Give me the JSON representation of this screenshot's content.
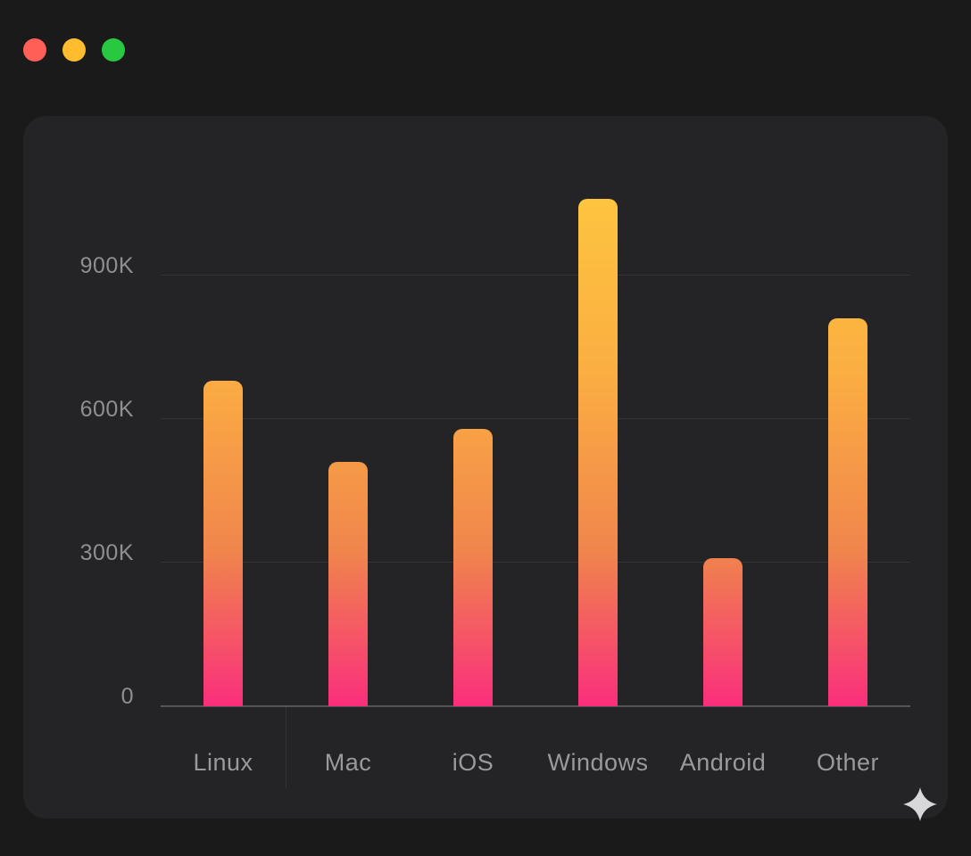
{
  "window": {
    "background_color": "#1a1a1b",
    "card_color": "#242426",
    "traffic_lights": [
      {
        "name": "close",
        "color": "#FF5F57"
      },
      {
        "name": "minimize",
        "color": "#FEBC2E"
      },
      {
        "name": "zoom",
        "color": "#28C840"
      }
    ]
  },
  "chart_data": {
    "type": "bar",
    "categories": [
      "Linux",
      "Mac",
      "iOS",
      "Windows",
      "Android",
      "Other"
    ],
    "values": [
      680000,
      510000,
      580000,
      1060000,
      310000,
      810000
    ],
    "y_ticks": [
      {
        "value": 0,
        "label": "0"
      },
      {
        "value": 300000,
        "label": "300K"
      },
      {
        "value": 600000,
        "label": "600K"
      },
      {
        "value": 900000,
        "label": "900K"
      }
    ],
    "title": "",
    "xlabel": "",
    "ylabel": "",
    "ylim": [
      0,
      1118000
    ],
    "grid": "horizontal",
    "legend": "none",
    "bar_gradient": {
      "bottom": "#FA2E7C",
      "mid_low": "#F0854C",
      "mid_high": "#FBAE42",
      "top": "#FDC53F"
    },
    "axis_color": "#55555a",
    "label_color": "#8e8e93"
  },
  "decor": {
    "sparkle_icon": "four-point-star",
    "sparkle_color": "#D8D8DA"
  }
}
